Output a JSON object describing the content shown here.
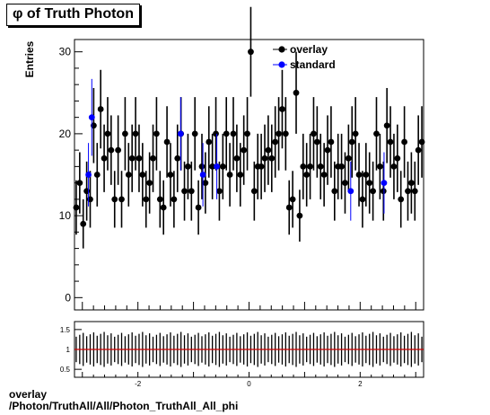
{
  "title": "φ of Truth Photon",
  "footer": {
    "line1": "overlay",
    "line2": "/Photon/TruthAll/All/Photon_TruthAll_All_phi"
  },
  "colors": {
    "overlay": "#000000",
    "standard": "#0000ff",
    "ratio_line": "#cc0000"
  },
  "chart_data": [
    {
      "type": "scatter",
      "ylabel": "Entries",
      "xlim": [
        -3.1416,
        3.1416
      ],
      "ylim": [
        -1.5,
        31.5
      ],
      "yticks": [
        0,
        10,
        20,
        30
      ],
      "legend": {
        "placement": "top-right",
        "entries": [
          "overlay",
          "standard"
        ]
      },
      "nbins": 100,
      "series": [
        {
          "name": "overlay",
          "values": [
            11,
            14,
            9,
            13,
            12,
            21,
            15,
            23,
            17,
            20,
            18,
            12,
            18,
            12,
            20,
            15,
            17,
            20,
            17,
            15,
            12,
            14,
            17,
            20,
            12,
            11,
            19,
            15,
            12,
            17,
            20,
            13,
            16,
            13,
            20,
            11,
            16,
            14,
            19,
            16,
            20,
            13,
            16,
            20,
            15,
            20,
            17,
            15,
            18,
            20,
            30,
            13,
            16,
            16,
            17,
            18,
            17,
            19,
            20,
            23,
            20,
            11,
            12,
            25,
            10,
            16,
            15,
            16,
            20,
            19,
            16,
            15,
            18,
            19,
            13,
            16,
            16,
            14,
            17,
            19,
            20,
            15,
            12,
            15,
            14,
            13,
            20,
            16,
            13,
            21,
            19,
            16,
            17,
            12,
            19,
            13,
            14,
            13,
            18,
            19
          ]
        },
        {
          "name": "standard",
          "points": [
            {
              "x": -2.89,
              "y": 15
            },
            {
              "x": -2.83,
              "y": 22
            },
            {
              "x": -1.23,
              "y": 20
            },
            {
              "x": -0.83,
              "y": 15
            },
            {
              "x": -0.58,
              "y": 16
            },
            {
              "x": 1.83,
              "y": 13
            },
            {
              "x": 2.43,
              "y": 14
            }
          ]
        }
      ]
    },
    {
      "type": "scatter",
      "xlim": [
        -3.1416,
        3.1416
      ],
      "ylim": [
        0.3,
        1.7
      ],
      "yticks": [
        0.5,
        1,
        1.5
      ],
      "xticks": [
        -2,
        0,
        2
      ],
      "reference_line": 1,
      "nbins": 100,
      "series": [
        {
          "name": "ratio",
          "value": 1.0,
          "err_low": 0.62,
          "err_high": 1.38
        }
      ]
    }
  ]
}
